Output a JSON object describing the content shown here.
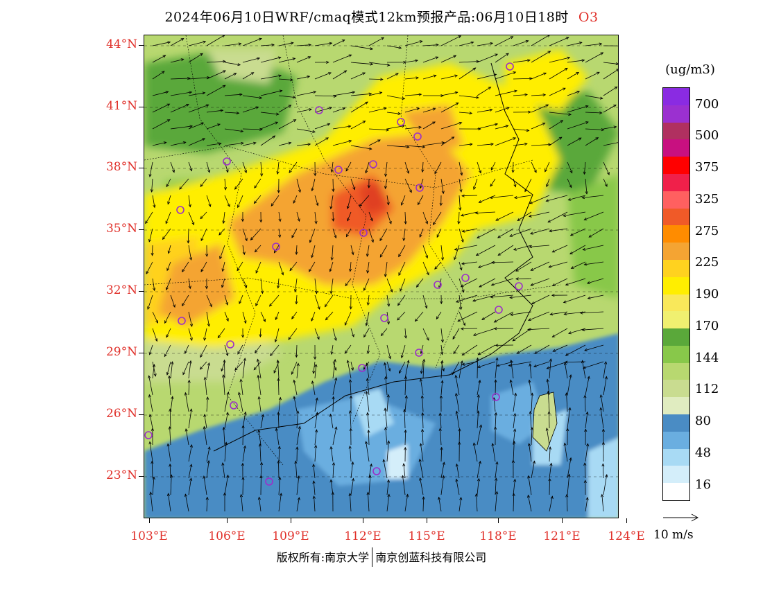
{
  "title": {
    "main": "2024年06月10日WRF/cmaq模式12km预报产品:06月10日18时",
    "species": "O3"
  },
  "map": {
    "lat_labels": [
      "44°N",
      "41°N",
      "38°N",
      "35°N",
      "32°N",
      "29°N",
      "26°N",
      "23°N"
    ],
    "lon_labels": [
      "103°E",
      "106°E",
      "109°E",
      "112°E",
      "115°E",
      "118°E",
      "121°E",
      "124°E"
    ],
    "city_marker_color": "#9b2fc9",
    "wind_arrow_color": "#000000",
    "wind_field_description": "northerly/southerly mixed flow, southerly over south, easterly near coast"
  },
  "legend": {
    "unit": "(ug/m3)",
    "labels": [
      "700",
      "500",
      "375",
      "325",
      "275",
      "225",
      "190",
      "170",
      "144",
      "112",
      "80",
      "48",
      "16"
    ],
    "colors_top_to_bottom": [
      "#8a2be2",
      "#9b30d0",
      "#b03060",
      "#c81080",
      "#ff0000",
      "#f0204a",
      "#ff6060",
      "#f05a28",
      "#ff8c00",
      "#f4a433",
      "#ffd21f",
      "#ffee00",
      "#f9e85a",
      "#f0f070",
      "#5aa83a",
      "#88c84a",
      "#b8d870",
      "#c9dc90",
      "#e0ecc0",
      "#4a8cc4",
      "#6aaee0",
      "#a8daf4",
      "#d4eefa",
      "#ffffff"
    ]
  },
  "wind_reference": {
    "label": "10 m/s"
  },
  "footer": {
    "left": "版权所有:南京大学",
    "right": "南京创蓝科技有限公司"
  }
}
